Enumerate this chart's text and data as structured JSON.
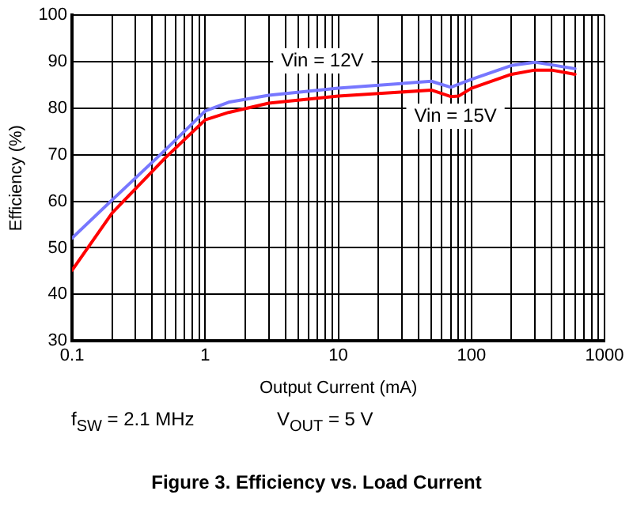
{
  "chart_data": {
    "type": "line",
    "title": "Figure 3. Efficiency vs. Load Current",
    "xlabel": "Output Current (mA)",
    "ylabel": "Efficiency (%)",
    "annotations": [
      "f$_{SW}$ = 2.1 MHz",
      "V$_{OUT}$ = 5 V"
    ],
    "log": "x",
    "xlim": [
      0.1,
      1000
    ],
    "xticks": [
      0.1,
      {
        "value": 0.2,
        "label": null
      },
      {
        "value": 0.3,
        "label": null
      },
      {
        "value": 0.4,
        "label": null
      },
      {
        "value": 0.5,
        "label": null
      },
      {
        "value": 0.6,
        "label": null
      },
      {
        "value": 0.7,
        "label": null
      },
      {
        "value": 0.8,
        "label": null
      },
      {
        "value": 0.9,
        "label": null
      },
      1,
      {
        "value": 2,
        "label": null
      },
      {
        "value": 3,
        "label": null
      },
      {
        "value": 4,
        "label": null
      },
      {
        "value": 5,
        "label": null
      },
      {
        "value": 6,
        "label": null
      },
      {
        "value": 7,
        "label": null
      },
      {
        "value": 8,
        "label": null
      },
      {
        "value": 9,
        "label": null
      },
      10,
      {
        "value": 20,
        "label": null
      },
      {
        "value": 30,
        "label": null
      },
      {
        "value": 40,
        "label": null
      },
      {
        "value": 50,
        "label": null
      },
      {
        "value": 60,
        "label": null
      },
      {
        "value": 70,
        "label": null
      },
      {
        "value": 80,
        "label": null
      },
      {
        "value": 90,
        "label": null
      },
      100,
      {
        "value": 200,
        "label": null
      },
      {
        "value": 300,
        "label": null
      },
      {
        "value": 400,
        "label": null
      },
      {
        "value": 500,
        "label": null
      },
      {
        "value": 600,
        "label": null
      },
      {
        "value": 700,
        "label": null
      },
      {
        "value": 800,
        "label": null
      },
      {
        "value": 900,
        "label": null
      },
      1000
    ],
    "ylim": [
      30,
      100
    ],
    "yticks": [
      30,
      40,
      50,
      60,
      70,
      80,
      90,
      100
    ],
    "grid": true,
    "legend": false,
    "marker": "none",
    "line_style": "solid",
    "series": [
      {
        "name": "Vin = 12V",
        "color": "#7777ff",
        "x": [
          0.1,
          0.2,
          0.5,
          1,
          1.5,
          3,
          10,
          50,
          70,
          100,
          200,
          300,
          600
        ],
        "values": [
          52.1,
          60.3,
          71,
          79.4,
          81.3,
          82.8,
          84.3,
          85.8,
          84.5,
          86.2,
          89.2,
          89.9,
          88.5
        ]
      },
      {
        "name": "Vin = 15V",
        "color": "#ff0000",
        "x": [
          0.1,
          0.2,
          0.5,
          1,
          1.5,
          3,
          10,
          50,
          70,
          80,
          100,
          200,
          300,
          400,
          600
        ],
        "values": [
          45.2,
          57.5,
          69.3,
          77.5,
          79.1,
          81.1,
          82.6,
          83.9,
          82.5,
          82.6,
          84.3,
          87.3,
          88.2,
          88.2,
          87.3
        ]
      }
    ]
  }
}
